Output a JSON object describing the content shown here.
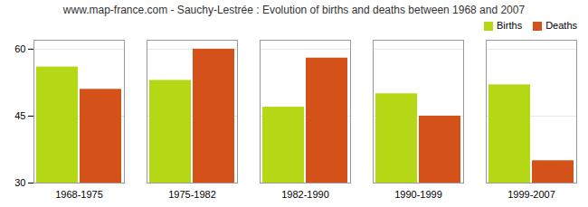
{
  "chart_data": {
    "type": "bar",
    "title": "www.map-france.com - Sauchy-Lestrée : Evolution of births and deaths between 1968 and 2007",
    "categories": [
      "1968-1975",
      "1975-1982",
      "1982-1990",
      "1990-1999",
      "1999-2007"
    ],
    "series": [
      {
        "name": "Births",
        "color": "#b5d816",
        "values": [
          56,
          53,
          47,
          50,
          52
        ]
      },
      {
        "name": "Deaths",
        "color": "#d4521a",
        "values": [
          51,
          60,
          58,
          45,
          35
        ]
      }
    ],
    "ylim": [
      30,
      62
    ],
    "yticks": [
      30,
      45,
      60
    ],
    "grid": true,
    "legend": "upper right"
  }
}
